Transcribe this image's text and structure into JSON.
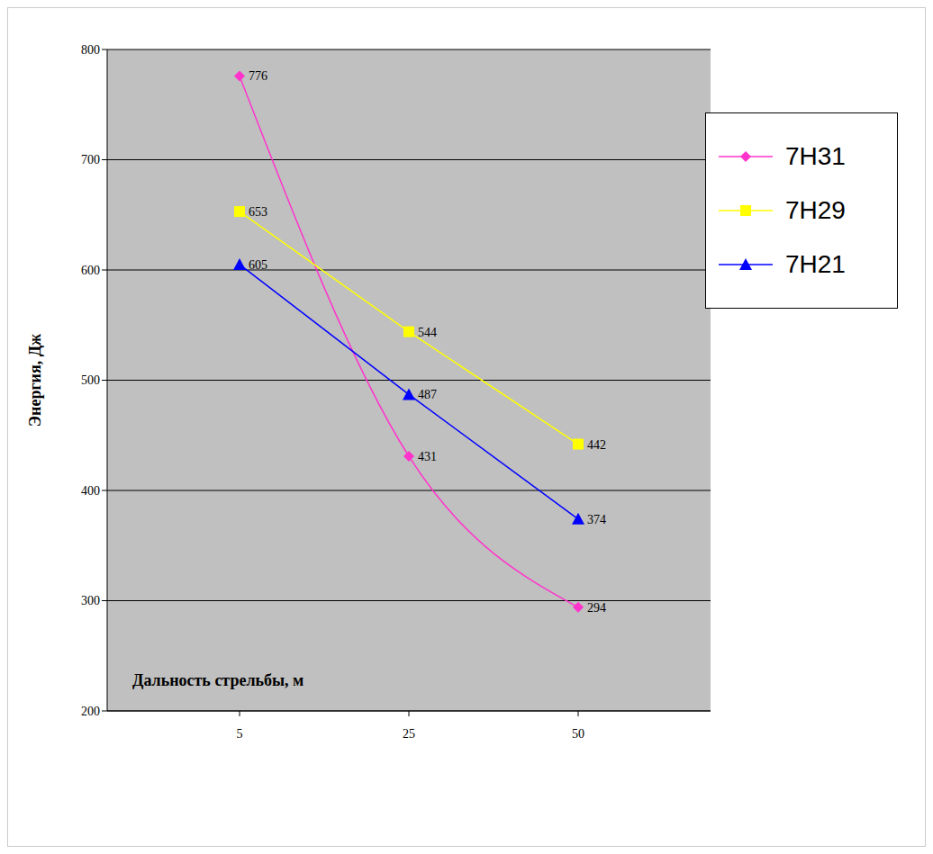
{
  "chart_data": {
    "type": "line",
    "x_label": "Дальность стрельбы, м",
    "y_label": "Энергия, Дж",
    "categories": [
      "5",
      "25",
      "50"
    ],
    "series": [
      {
        "name": "7Н31",
        "color": "#ff33cc",
        "marker": "diamond",
        "line_style": "smooth",
        "values": [
          776,
          431,
          294
        ]
      },
      {
        "name": "7Н29",
        "color": "#ffff00",
        "marker": "square",
        "line_style": "solid",
        "values": [
          653,
          544,
          442
        ]
      },
      {
        "name": "7Н21",
        "color": "#0000ff",
        "marker": "triangle",
        "line_style": "solid",
        "values": [
          605,
          487,
          374
        ]
      }
    ],
    "ylim": [
      200,
      800
    ],
    "yticks": [
      200,
      300,
      400,
      500,
      600,
      700,
      800
    ],
    "grid": true,
    "legend": "upper right",
    "data_labels": true
  }
}
